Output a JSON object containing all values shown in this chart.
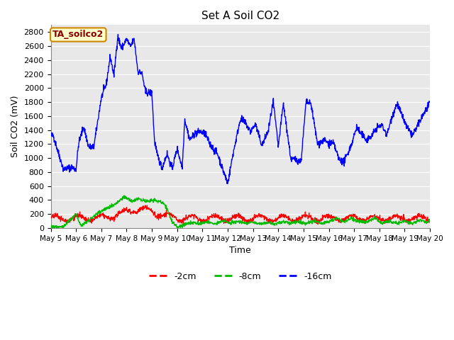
{
  "title": "Set A Soil CO2",
  "xlabel": "Time",
  "ylabel": "Soil CO2 (mV)",
  "annotation": "TA_soilco2",
  "ylim": [
    0,
    2900
  ],
  "yticks": [
    0,
    200,
    400,
    600,
    800,
    1000,
    1200,
    1400,
    1600,
    1800,
    2000,
    2200,
    2400,
    2600,
    2800
  ],
  "bg_color": "#e8e8e8",
  "line_colors": {
    "2cm": "#ff0000",
    "8cm": "#00bb00",
    "16cm": "#0000ff"
  },
  "legend_labels": [
    "-2cm",
    "-8cm",
    "-16cm"
  ],
  "legend_colors": [
    "#ff0000",
    "#00bb00",
    "#0000ff"
  ],
  "num_points": 1500,
  "title_fontsize": 11,
  "axis_label_fontsize": 9,
  "tick_fontsize": 8,
  "annotation_fontsize": 9
}
